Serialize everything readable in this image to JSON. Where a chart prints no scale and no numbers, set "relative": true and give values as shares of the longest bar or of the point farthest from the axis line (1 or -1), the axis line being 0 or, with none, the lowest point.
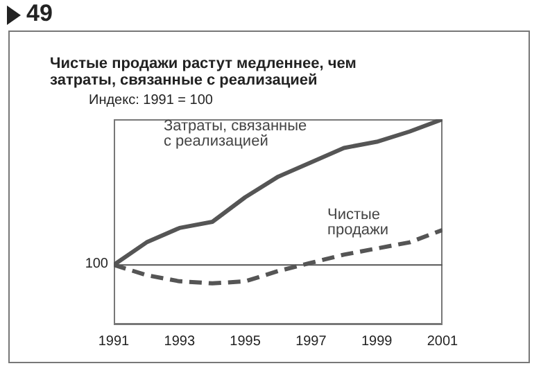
{
  "chart_data": {
    "type": "line",
    "title": "Чистые продажи растут медленнее, чем затраты, связанные с реализацией",
    "subtitle": "Индекс: 1991 = 100",
    "annotations": [
      "49",
      "100"
    ],
    "relative": true,
    "x": [
      1991,
      1992,
      1993,
      1994,
      1995,
      1996,
      1997,
      1998,
      1999,
      2000,
      2001
    ],
    "xlim": [
      1991,
      2001
    ],
    "xticks": [
      1991,
      1993,
      1995,
      1997,
      1999,
      2001
    ],
    "series": [
      {
        "name": "Затраты, связанные с реализацией",
        "color": "#555555",
        "line_style": "solid",
        "values": [
          0.29,
          0.4,
          0.47,
          0.5,
          0.62,
          0.72,
          0.79,
          0.86,
          0.89,
          0.94,
          1
        ]
      },
      {
        "name": "Чистые продажи",
        "color": "#555555",
        "line_style": "dashed",
        "values": [
          0.29,
          0.24,
          0.21,
          0.2,
          0.21,
          0.26,
          0.3,
          0.34,
          0.37,
          0.4,
          0.46
        ]
      }
    ],
    "ref_lines": [
      {
        "axis": "y",
        "value": 0.29,
        "color": "#555555"
      }
    ],
    "grid": false,
    "legend": false,
    "marker": "none"
  }
}
